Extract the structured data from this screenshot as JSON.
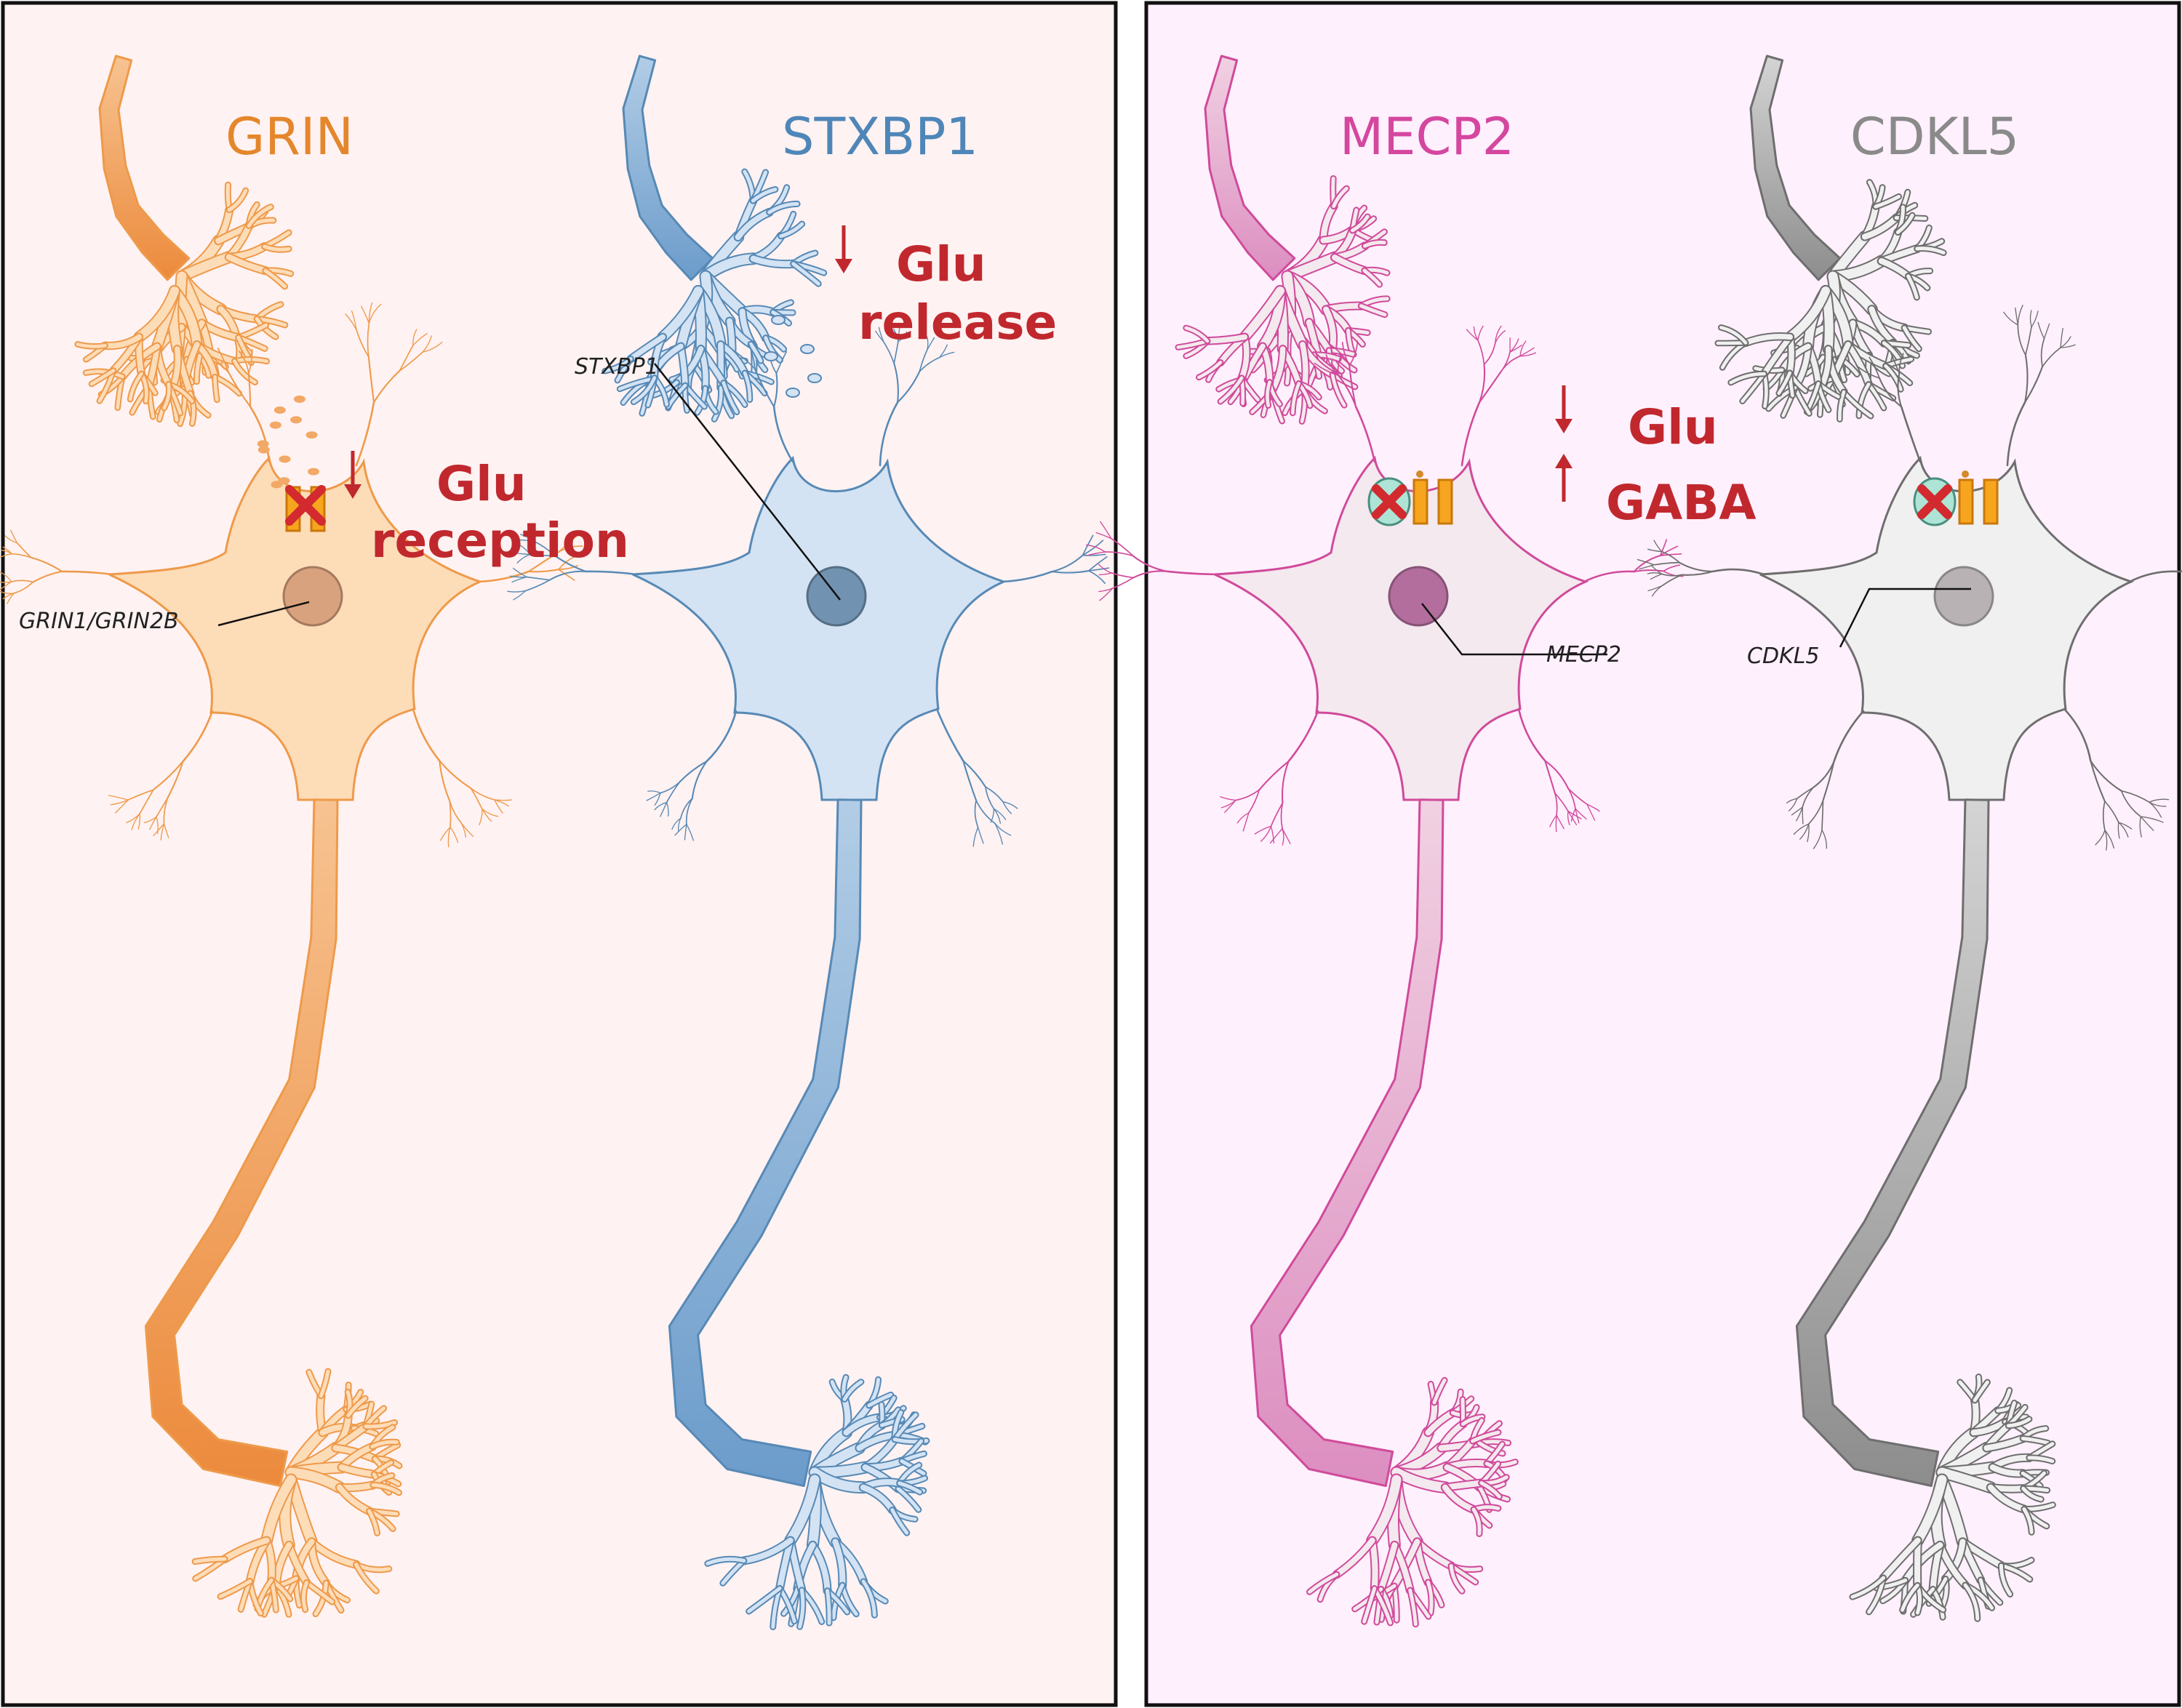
{
  "panels": [
    {
      "id": "excitatory",
      "background": "#fff2f2"
    },
    {
      "id": "inhibitory",
      "background": "#fff0fd"
    }
  ],
  "neurons": [
    {
      "id": "grin",
      "title": "GRIN",
      "colors": {
        "title": "#e4872c",
        "fill": "#fddcb8",
        "stroke": "#ee9a4a",
        "axon_light": "#f7c391",
        "axon_dark": "#ec8a3c",
        "nucleus": "#d9a27e"
      },
      "gene_label": "GRIN1/GRIN2B",
      "effect_lines": [
        "Glu",
        "reception"
      ],
      "effect_arrows": [
        "down"
      ],
      "defect": "receptor"
    },
    {
      "id": "stxbp1",
      "title": "STXBP1",
      "colors": {
        "title": "#4f86b8",
        "fill": "#d3e3f4",
        "stroke": "#5789b5",
        "axon_light": "#b2cde6",
        "axon_dark": "#6c9ccb",
        "nucleus": "#7193b1"
      },
      "gene_label": "STXBP1",
      "effect_lines": [
        "Glu",
        "release"
      ],
      "effect_arrows": [
        "down"
      ],
      "defect": "release"
    },
    {
      "id": "mecp2",
      "title": "MECP2",
      "colors": {
        "title": "#d4479f",
        "fill": "#f4e9ee",
        "stroke": "#d04a9b",
        "axon_light": "#f1d1e2",
        "axon_dark": "#dc8ec0",
        "nucleus": "#b36e9e"
      },
      "gene_label": "MECP2",
      "effect_lines": [
        "Glu",
        "GABA"
      ],
      "effect_arrows": [
        "down",
        "up"
      ],
      "defect": "synapse"
    },
    {
      "id": "cdkl5",
      "title": "CDKL5",
      "colors": {
        "title": "#8a8a8a",
        "fill": "#f0f0f0",
        "stroke": "#6e6e6e",
        "axon_light": "#d4d4d4",
        "axon_dark": "#8d8d8d",
        "nucleus": "#b8b2b4"
      },
      "gene_label": "CDKL5",
      "effect_lines": [],
      "effect_arrows": [],
      "defect": "synapse"
    }
  ]
}
